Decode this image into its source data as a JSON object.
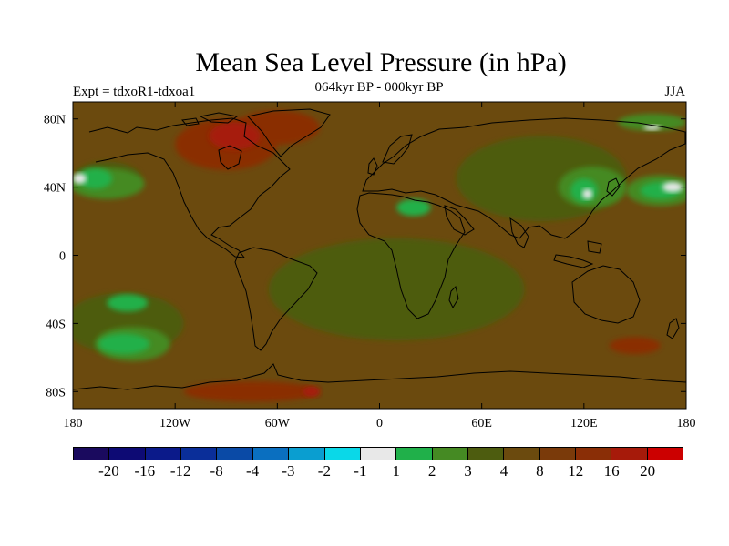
{
  "title": "Mean Sea Level Pressure (in hPa)",
  "subtitle": "064kyr BP - 000kyr BP",
  "experiment": "Expt = tdxoR1-tdxoa1",
  "season": "JJA",
  "map": {
    "projection": "cylindrical-equidistant",
    "lon_range": [
      -180,
      180
    ],
    "lat_range": [
      -90,
      90
    ],
    "x_ticks": [
      {
        "value": -180,
        "label": "180"
      },
      {
        "value": -120,
        "label": "120W"
      },
      {
        "value": -60,
        "label": "60W"
      },
      {
        "value": 0,
        "label": "0"
      },
      {
        "value": 60,
        "label": "60E"
      },
      {
        "value": 120,
        "label": "120E"
      },
      {
        "value": 180,
        "label": "180"
      }
    ],
    "y_ticks": [
      {
        "value": 80,
        "label": "80N"
      },
      {
        "value": 40,
        "label": "40N"
      },
      {
        "value": 0,
        "label": "0"
      },
      {
        "value": -40,
        "label": "40S"
      },
      {
        "value": -80,
        "label": "80S"
      }
    ],
    "background_color": "#6b4a0e",
    "fields": [
      {
        "color": "#4d5c0f",
        "lon": 10,
        "lat": -20,
        "rx": 75,
        "ry": 30
      },
      {
        "color": "#4d5c0f",
        "lon": 95,
        "lat": 45,
        "rx": 50,
        "ry": 25
      },
      {
        "color": "#4d5c0f",
        "lon": -150,
        "lat": -40,
        "rx": 35,
        "ry": 18
      },
      {
        "color": "#4d5c0f",
        "lon": -160,
        "lat": 45,
        "rx": 20,
        "ry": 10
      },
      {
        "color": "#458a23",
        "lon": 125,
        "lat": 40,
        "rx": 20,
        "ry": 12
      },
      {
        "color": "#458a23",
        "lon": 165,
        "lat": 38,
        "rx": 20,
        "ry": 9
      },
      {
        "color": "#458a23",
        "lon": -160,
        "lat": 42,
        "rx": 22,
        "ry": 9
      },
      {
        "color": "#458a23",
        "lon": -145,
        "lat": -52,
        "rx": 22,
        "ry": 10
      },
      {
        "color": "#458a23",
        "lon": 160,
        "lat": 78,
        "rx": 20,
        "ry": 5
      },
      {
        "color": "#20b04a",
        "lon": -150,
        "lat": -52,
        "rx": 15,
        "ry": 6
      },
      {
        "color": "#20b04a",
        "lon": -148,
        "lat": -28,
        "rx": 12,
        "ry": 5
      },
      {
        "color": "#20b04a",
        "lon": 120,
        "lat": 38,
        "rx": 8,
        "ry": 7
      },
      {
        "color": "#20b04a",
        "lon": 165,
        "lat": 38,
        "rx": 12,
        "ry": 5
      },
      {
        "color": "#20b04a",
        "lon": -167,
        "lat": 45,
        "rx": 10,
        "ry": 6
      },
      {
        "color": "#20b04a",
        "lon": 20,
        "lat": 28,
        "rx": 10,
        "ry": 5
      },
      {
        "color": "#e8e8e8",
        "lon": 122,
        "lat": 36,
        "rx": 3,
        "ry": 3
      },
      {
        "color": "#e8e8e8",
        "lon": 172,
        "lat": 40,
        "rx": 6,
        "ry": 3
      },
      {
        "color": "#e8e8e8",
        "lon": -176,
        "lat": 45,
        "rx": 4,
        "ry": 3
      },
      {
        "color": "#e8e8e8",
        "lon": 160,
        "lat": 75,
        "rx": 5,
        "ry": 1.5
      },
      {
        "color": "#8a2e06",
        "lon": -90,
        "lat": 65,
        "rx": 30,
        "ry": 15
      },
      {
        "color": "#8a2e06",
        "lon": -60,
        "lat": 75,
        "rx": 25,
        "ry": 10
      },
      {
        "color": "#8a2e06",
        "lon": -75,
        "lat": -80,
        "rx": 40,
        "ry": 6
      },
      {
        "color": "#8a2e06",
        "lon": 150,
        "lat": -53,
        "rx": 15,
        "ry": 5
      },
      {
        "color": "#a61a0a",
        "lon": -85,
        "lat": 70,
        "rx": 15,
        "ry": 8
      },
      {
        "color": "#a61a0a",
        "lon": -40,
        "lat": -80,
        "rx": 5,
        "ry": 3
      }
    ]
  },
  "legend": {
    "colors": [
      "#1a0a5e",
      "#0d0a74",
      "#0b1a8a",
      "#0a2e99",
      "#0a4aa6",
      "#0a6fc0",
      "#0a9ed0",
      "#0ad8e8",
      "#e8e8e8",
      "#20b04a",
      "#458a23",
      "#4d5c0f",
      "#6b4a0e",
      "#7a3a0a",
      "#8a2e06",
      "#a61a0a",
      "#cc0000"
    ],
    "labels": [
      "-20",
      "-16",
      "-12",
      "-8",
      "-4",
      "-3",
      "-2",
      "-1",
      "1",
      "2",
      "3",
      "4",
      "8",
      "12",
      "16",
      "20"
    ]
  }
}
